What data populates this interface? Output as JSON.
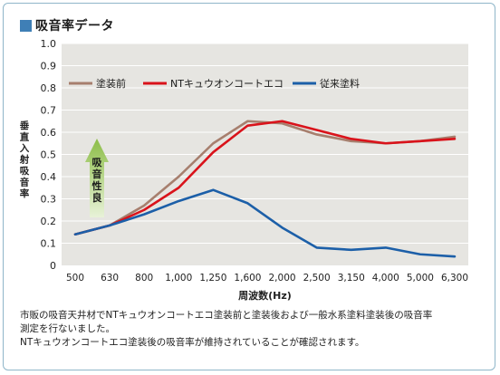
{
  "title": "吸音率データ",
  "caption": {
    "line1": "市販の吸音天井材でNTキュウオンコートエコ塗装前と塗装後および一般水系塗料塗装後の吸音率",
    "line2": "測定を行ないました。",
    "line3": "NTキュウオンコートエコ塗装後の吸音率が維持されていることが確認されます。"
  },
  "arrow_label": "吸音性良",
  "colors": {
    "plot_bg": "#e6e5e1",
    "grid": "#ffffff",
    "arrow_top": "#8cbd47",
    "arrow_bottom": "#e8f2d8"
  },
  "chart_data": {
    "type": "line",
    "title": "",
    "xlabel": "周波数(Hz)",
    "ylabel": "垂直入射吸音率",
    "categories": [
      "500",
      "630",
      "800",
      "1,000",
      "1,250",
      "1,600",
      "2,000",
      "2,500",
      "3,150",
      "4,000",
      "5,000",
      "6,300"
    ],
    "ylim": [
      0,
      1.0
    ],
    "yticks": [
      "0",
      "0.1",
      "0.2",
      "0.3",
      "0.4",
      "0.5",
      "0.6",
      "0.7",
      "0.8",
      "0.9",
      "1.0"
    ],
    "grid": true,
    "legend_position": "top",
    "series": [
      {
        "name": "塗装前",
        "color": "#a77f6e",
        "values": [
          0.14,
          0.18,
          0.27,
          0.4,
          0.55,
          0.65,
          0.64,
          0.59,
          0.56,
          0.55,
          0.56,
          0.58
        ]
      },
      {
        "name": "NTキュウオンコートエコ",
        "color": "#d9131b",
        "values": [
          0.14,
          0.18,
          0.25,
          0.35,
          0.51,
          0.63,
          0.65,
          0.61,
          0.57,
          0.55,
          0.56,
          0.57
        ]
      },
      {
        "name": "従来塗料",
        "color": "#1c5fa8",
        "values": [
          0.14,
          0.18,
          0.23,
          0.29,
          0.34,
          0.28,
          0.17,
          0.08,
          0.07,
          0.08,
          0.05,
          0.04
        ]
      }
    ]
  }
}
